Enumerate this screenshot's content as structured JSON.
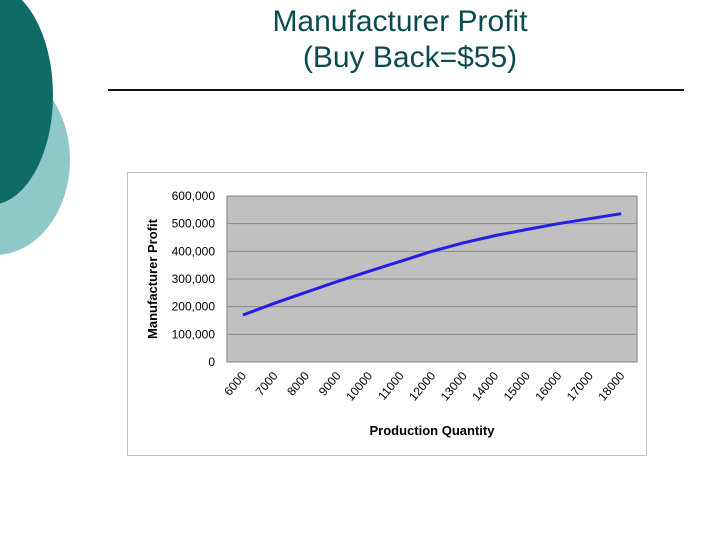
{
  "slide": {
    "title_line1": "Manufacturer Profit",
    "title_line2": "(Buy Back=$55)"
  },
  "colors": {
    "deco_dark": "#0f6b68",
    "deco_light": "#8fc8c9",
    "line": "#1f1fe6",
    "plot_bg": "#c0c0c0",
    "title": "#0b4a4f"
  },
  "chart_data": {
    "type": "line",
    "title": "",
    "xlabel": "Production Quantity",
    "ylabel": "Manufacturer Profit",
    "categories": [
      "6000",
      "7000",
      "8000",
      "9000",
      "10000",
      "11000",
      "12000",
      "13000",
      "14000",
      "15000",
      "16000",
      "17000",
      "18000"
    ],
    "ytick_labels": [
      "0",
      "100,000",
      "200,000",
      "300,000",
      "400,000",
      "500,000",
      "600,000"
    ],
    "yticks": [
      0,
      100000,
      200000,
      300000,
      400000,
      500000,
      600000
    ],
    "ylim": [
      0,
      600000
    ],
    "grid": true,
    "legend": "none",
    "series": [
      {
        "values": [
          170000,
          212000,
          252000,
          291000,
          328000,
          364000,
          400000,
          431000,
          457000,
          479000,
          500000,
          518000,
          536000
        ]
      }
    ]
  }
}
